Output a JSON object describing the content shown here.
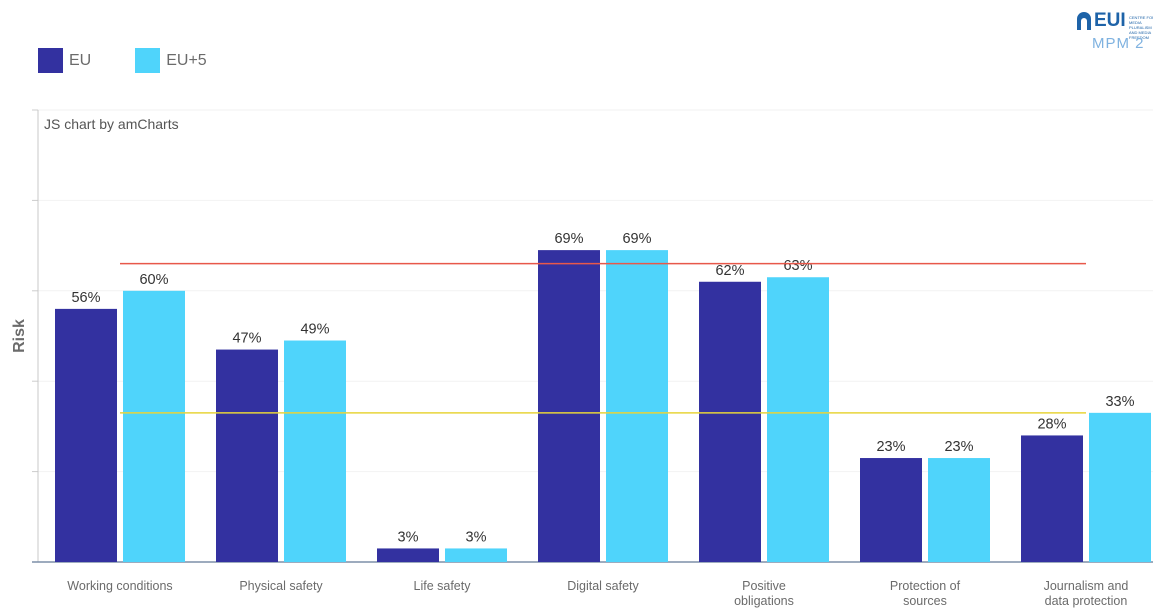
{
  "logo": {
    "text": "EUI",
    "small_text": "CENTRE FOR MEDIA PLURALISM AND MEDIA FREEDOM",
    "sub_text": "MPM 2"
  },
  "chart_data": {
    "type": "bar",
    "credit": "JS chart by amCharts",
    "ylabel": "Risk",
    "xlabel": "",
    "ylim": [
      0,
      100
    ],
    "grid": true,
    "legend_position": "top-left",
    "categories": [
      [
        "Working conditions"
      ],
      [
        "Physical safety"
      ],
      [
        "Life safety"
      ],
      [
        "Digital safety"
      ],
      [
        "Positive",
        "obligations"
      ],
      [
        "Protection of",
        "sources"
      ],
      [
        "Journalism and",
        "data protection"
      ]
    ],
    "series": [
      {
        "name": "EU",
        "color": "#3331a0",
        "values": [
          56,
          47,
          3,
          69,
          62,
          23,
          28
        ]
      },
      {
        "name": "EU+5",
        "color": "#4fd4fb",
        "values": [
          60,
          49,
          3,
          69,
          63,
          23,
          33
        ]
      }
    ],
    "value_suffix": "%",
    "reference_lines": [
      {
        "value": 66,
        "color": "#e8584a"
      },
      {
        "value": 33,
        "color": "#e8d43a"
      }
    ]
  }
}
